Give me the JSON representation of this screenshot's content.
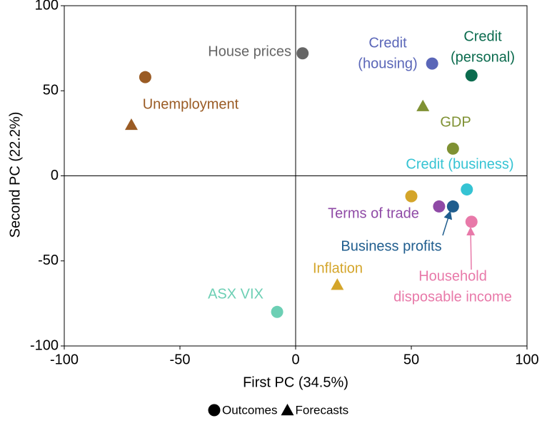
{
  "chart_data": {
    "type": "scatter",
    "xlabel": "First PC (34.5%)",
    "ylabel": "Second PC (22.2%)",
    "xlim": [
      -100,
      100
    ],
    "ylim": [
      -100,
      100
    ],
    "xticks": [
      -100,
      -50,
      0,
      50,
      100
    ],
    "yticks": [
      -100,
      -50,
      0,
      50,
      100
    ],
    "zero_lines": true,
    "legend": "bottom",
    "series": [
      {
        "name": "Outcomes",
        "marker": "circle",
        "x": [
          3,
          -65,
          59,
          76,
          68,
          74,
          50,
          62,
          68,
          76,
          -8
        ],
        "y": [
          72,
          58,
          66,
          59,
          16,
          -8,
          -12,
          -18,
          -18,
          -27,
          -80
        ],
        "colors": [
          "#666666",
          "#9a5b24",
          "#5a66b8",
          "#0b6b4e",
          "#7f9133",
          "#35c3d3",
          "#d4a52a",
          "#8f4aa6",
          "#1f5d8e",
          "#e879a9",
          "#6ccfb4"
        ]
      },
      {
        "name": "Forecasts",
        "marker": "triangle",
        "x": [
          -71,
          55,
          18
        ],
        "y": [
          30,
          41,
          -64
        ],
        "colors": [
          "#9a5b24",
          "#7f9133",
          "#d4a52a"
        ]
      }
    ],
    "annotations": [
      {
        "text": [
          "House prices"
        ],
        "color": "#666666"
      },
      {
        "text": [
          "Credit",
          "(housing)"
        ],
        "color": "#5a66b8"
      },
      {
        "text": [
          "Credit",
          "(personal)"
        ],
        "color": "#0b6b4e"
      },
      {
        "text": [
          "Unemployment"
        ],
        "color": "#9a5b24"
      },
      {
        "text": [
          "GDP"
        ],
        "color": "#7f9133"
      },
      {
        "text": [
          "Credit (business)"
        ],
        "color": "#35c3d3"
      },
      {
        "text": [
          "Terms of trade"
        ],
        "color": "#8f4aa6"
      },
      {
        "text": [
          "Business profits"
        ],
        "color": "#1f5d8e"
      },
      {
        "text": [
          "Inflation"
        ],
        "color": "#d4a52a"
      },
      {
        "text": [
          "Household",
          "disposable income"
        ],
        "color": "#e879a9"
      },
      {
        "text": [
          "ASX VIX"
        ],
        "color": "#6ccfb4"
      }
    ]
  }
}
